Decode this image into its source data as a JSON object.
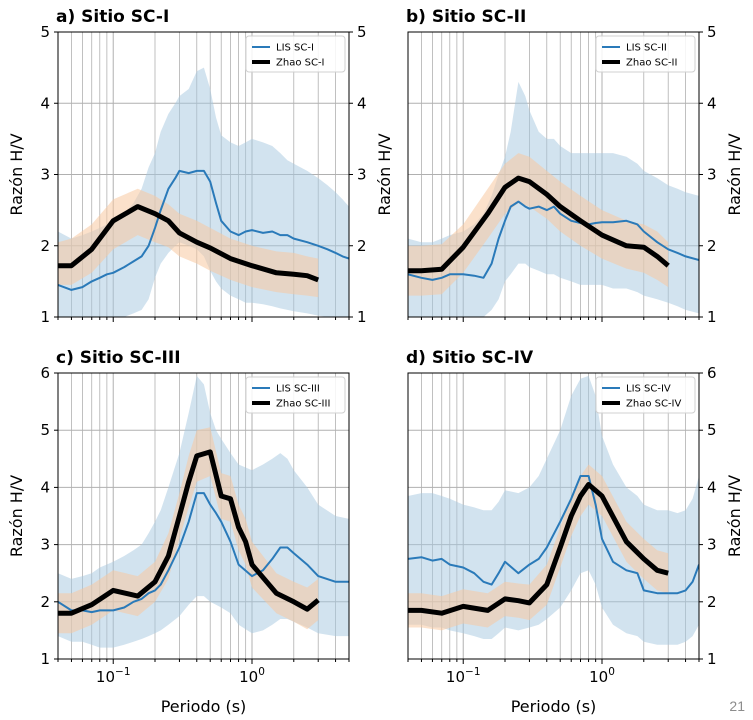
{
  "colors": {
    "lis_line": "#2a7ab9",
    "lis_band": "#a6c8e0",
    "zhao_line": "#000000",
    "zhao_band": "#f7c9a0",
    "grid": "#b0b0b0"
  },
  "slide_number": "21",
  "chart_data": [
    {
      "type": "line",
      "title": "a) Sitio SC-I",
      "xlabel": "",
      "ylabel": "Razón H/V",
      "ylabel_side": "both",
      "x_scale": "log",
      "xlim": [
        0.04,
        5
      ],
      "ylim": [
        1,
        5
      ],
      "yticks": [
        "1",
        "2",
        "3",
        "4",
        "5"
      ],
      "legend": "top-right",
      "series": [
        {
          "name": "LIS SC-I",
          "x": [
            0.04,
            0.05,
            0.06,
            0.07,
            0.08,
            0.09,
            0.1,
            0.12,
            0.14,
            0.16,
            0.18,
            0.2,
            0.22,
            0.25,
            0.28,
            0.3,
            0.35,
            0.4,
            0.45,
            0.5,
            0.55,
            0.6,
            0.7,
            0.8,
            0.9,
            1.0,
            1.2,
            1.4,
            1.6,
            1.8,
            2.0,
            2.5,
            3.0,
            3.5,
            4.0,
            4.5,
            5.0
          ],
          "y": [
            1.45,
            1.38,
            1.42,
            1.5,
            1.55,
            1.6,
            1.62,
            1.7,
            1.78,
            1.85,
            2.0,
            2.25,
            2.5,
            2.8,
            2.95,
            3.05,
            3.02,
            3.05,
            3.05,
            2.9,
            2.6,
            2.35,
            2.2,
            2.15,
            2.2,
            2.22,
            2.18,
            2.2,
            2.15,
            2.15,
            2.1,
            2.05,
            2.0,
            1.95,
            1.9,
            1.85,
            1.82
          ],
          "band_upper": [
            2.2,
            2.1,
            2.15,
            2.2,
            2.25,
            2.3,
            2.4,
            2.45,
            2.6,
            2.8,
            3.1,
            3.3,
            3.6,
            3.85,
            4.0,
            4.1,
            4.2,
            4.45,
            4.5,
            4.2,
            3.8,
            3.55,
            3.45,
            3.4,
            3.45,
            3.5,
            3.45,
            3.4,
            3.3,
            3.2,
            3.15,
            3.05,
            2.95,
            2.85,
            2.75,
            2.65,
            2.55
          ],
          "band_lower": [
            1.0,
            1.0,
            1.0,
            1.0,
            1.0,
            1.0,
            1.0,
            1.0,
            1.05,
            1.1,
            1.25,
            1.55,
            1.75,
            1.9,
            2.0,
            2.05,
            2.0,
            1.95,
            1.85,
            1.65,
            1.5,
            1.4,
            1.3,
            1.25,
            1.2,
            1.2,
            1.18,
            1.15,
            1.12,
            1.1,
            1.08,
            1.05,
            1.02,
            1.0,
            1.0,
            1.0,
            1.0
          ]
        },
        {
          "name": "Zhao SC-I",
          "x": [
            0.04,
            0.05,
            0.07,
            0.1,
            0.15,
            0.2,
            0.25,
            0.3,
            0.4,
            0.5,
            0.7,
            1.0,
            1.5,
            2.0,
            2.5,
            3.0
          ],
          "y": [
            1.72,
            1.72,
            1.95,
            2.35,
            2.55,
            2.45,
            2.35,
            2.18,
            2.05,
            1.97,
            1.82,
            1.72,
            1.62,
            1.6,
            1.58,
            1.52
          ],
          "band_upper": [
            2.05,
            2.1,
            2.3,
            2.65,
            2.8,
            2.7,
            2.58,
            2.45,
            2.35,
            2.25,
            2.1,
            2.0,
            1.92,
            1.9,
            1.85,
            1.82
          ],
          "band_lower": [
            1.45,
            1.45,
            1.62,
            1.95,
            2.15,
            2.05,
            1.98,
            1.85,
            1.75,
            1.65,
            1.52,
            1.42,
            1.35,
            1.32,
            1.3,
            1.28
          ]
        }
      ]
    },
    {
      "type": "line",
      "title": "b) Sitio SC-II",
      "xlabel": "",
      "ylabel": "Razón H/V",
      "ylabel_side": "right",
      "x_scale": "log",
      "xlim": [
        0.04,
        5
      ],
      "ylim": [
        1,
        5
      ],
      "yticks": [
        "1",
        "2",
        "3",
        "4",
        "5"
      ],
      "legend": "top-right",
      "series": [
        {
          "name": "LIS SC-II",
          "x": [
            0.04,
            0.05,
            0.06,
            0.07,
            0.08,
            0.1,
            0.12,
            0.14,
            0.16,
            0.18,
            0.2,
            0.22,
            0.25,
            0.28,
            0.3,
            0.35,
            0.4,
            0.45,
            0.5,
            0.6,
            0.7,
            0.8,
            0.9,
            1.0,
            1.2,
            1.5,
            1.8,
            2.0,
            2.5,
            3.0,
            3.5,
            4.0,
            5.0
          ],
          "y": [
            1.6,
            1.55,
            1.52,
            1.55,
            1.6,
            1.6,
            1.58,
            1.55,
            1.75,
            2.1,
            2.35,
            2.55,
            2.62,
            2.55,
            2.52,
            2.55,
            2.5,
            2.55,
            2.45,
            2.35,
            2.32,
            2.3,
            2.32,
            2.33,
            2.33,
            2.35,
            2.3,
            2.2,
            2.05,
            1.95,
            1.9,
            1.85,
            1.8
          ],
          "band_upper": [
            2.1,
            2.05,
            2.05,
            2.1,
            2.15,
            2.2,
            2.3,
            2.45,
            2.7,
            3.0,
            3.25,
            3.6,
            4.3,
            4.1,
            3.9,
            3.6,
            3.5,
            3.5,
            3.4,
            3.3,
            3.3,
            3.3,
            3.3,
            3.3,
            3.3,
            3.25,
            3.15,
            3.05,
            2.95,
            2.85,
            2.8,
            2.75,
            2.7
          ],
          "band_lower": [
            1.0,
            1.0,
            1.0,
            1.0,
            1.0,
            1.0,
            1.0,
            1.0,
            1.1,
            1.25,
            1.5,
            1.6,
            1.75,
            1.75,
            1.7,
            1.65,
            1.6,
            1.6,
            1.55,
            1.5,
            1.45,
            1.45,
            1.45,
            1.45,
            1.4,
            1.4,
            1.35,
            1.3,
            1.25,
            1.2,
            1.15,
            1.1,
            1.05
          ]
        },
        {
          "name": "Zhao SC-II",
          "x": [
            0.04,
            0.05,
            0.07,
            0.1,
            0.15,
            0.2,
            0.25,
            0.3,
            0.4,
            0.5,
            0.7,
            1.0,
            1.5,
            2.0,
            2.5,
            3.0
          ],
          "y": [
            1.65,
            1.65,
            1.67,
            1.98,
            2.45,
            2.82,
            2.95,
            2.9,
            2.72,
            2.55,
            2.35,
            2.15,
            2.0,
            1.98,
            1.85,
            1.72
          ],
          "band_upper": [
            2.0,
            2.0,
            2.02,
            2.3,
            2.8,
            3.15,
            3.3,
            3.25,
            3.05,
            2.9,
            2.7,
            2.5,
            2.35,
            2.3,
            2.2,
            2.05
          ],
          "band_lower": [
            1.3,
            1.3,
            1.32,
            1.62,
            2.1,
            2.45,
            2.6,
            2.55,
            2.38,
            2.2,
            2.0,
            1.82,
            1.68,
            1.62,
            1.52,
            1.42
          ]
        }
      ]
    },
    {
      "type": "line",
      "title": "c) Sitio SC-III",
      "xlabel": "Periodo (s)",
      "ylabel": "Razón H/V",
      "ylabel_side": "left",
      "x_scale": "log",
      "xlim": [
        0.04,
        5
      ],
      "ylim": [
        1,
        6
      ],
      "yticks": [
        "1",
        "2",
        "3",
        "4",
        "5",
        "6"
      ],
      "legend": "top-right",
      "series": [
        {
          "name": "LIS SC-III",
          "x": [
            0.04,
            0.05,
            0.06,
            0.07,
            0.08,
            0.1,
            0.12,
            0.14,
            0.16,
            0.18,
            0.2,
            0.22,
            0.25,
            0.3,
            0.35,
            0.4,
            0.45,
            0.5,
            0.55,
            0.6,
            0.7,
            0.8,
            1.0,
            1.2,
            1.4,
            1.6,
            1.8,
            2.0,
            2.5,
            3.0,
            4.0,
            5.0
          ],
          "y": [
            2.0,
            1.85,
            1.85,
            1.82,
            1.85,
            1.85,
            1.9,
            2.0,
            2.05,
            2.15,
            2.2,
            2.3,
            2.55,
            2.95,
            3.4,
            3.9,
            3.9,
            3.7,
            3.55,
            3.4,
            3.05,
            2.65,
            2.45,
            2.55,
            2.75,
            2.95,
            2.95,
            2.85,
            2.65,
            2.45,
            2.35,
            2.35
          ],
          "band_upper": [
            2.5,
            2.4,
            2.45,
            2.5,
            2.6,
            2.7,
            2.8,
            2.9,
            3.0,
            3.2,
            3.4,
            3.6,
            4.0,
            4.6,
            5.3,
            5.95,
            5.8,
            5.3,
            5.0,
            4.85,
            4.6,
            4.4,
            4.3,
            4.4,
            4.5,
            4.6,
            4.5,
            4.3,
            4.0,
            3.7,
            3.5,
            3.45
          ],
          "band_lower": [
            1.4,
            1.3,
            1.3,
            1.25,
            1.2,
            1.2,
            1.25,
            1.3,
            1.35,
            1.4,
            1.45,
            1.5,
            1.6,
            1.75,
            1.95,
            2.1,
            2.1,
            2.0,
            1.95,
            1.9,
            1.8,
            1.6,
            1.45,
            1.5,
            1.6,
            1.7,
            1.7,
            1.65,
            1.55,
            1.45,
            1.4,
            1.4
          ]
        },
        {
          "name": "Zhao SC-III",
          "x": [
            0.04,
            0.05,
            0.07,
            0.1,
            0.15,
            0.2,
            0.25,
            0.3,
            0.35,
            0.4,
            0.5,
            0.6,
            0.7,
            0.8,
            0.9,
            1.0,
            1.5,
            2.0,
            2.5,
            3.0
          ],
          "y": [
            1.8,
            1.8,
            1.95,
            2.2,
            2.1,
            2.35,
            2.8,
            3.5,
            4.1,
            4.55,
            4.62,
            3.85,
            3.8,
            3.3,
            3.05,
            2.65,
            2.15,
            2.0,
            1.87,
            2.03
          ],
          "band_upper": [
            2.15,
            2.15,
            2.3,
            2.55,
            2.45,
            2.7,
            3.2,
            3.9,
            4.55,
            5.0,
            5.05,
            4.25,
            4.2,
            3.7,
            3.45,
            3.05,
            2.5,
            2.35,
            2.25,
            2.4
          ],
          "band_lower": [
            1.45,
            1.45,
            1.6,
            1.85,
            1.75,
            2.0,
            2.4,
            3.1,
            3.65,
            4.1,
            4.2,
            3.45,
            3.4,
            2.9,
            2.65,
            2.25,
            1.8,
            1.65,
            1.52,
            1.68
          ]
        }
      ]
    },
    {
      "type": "line",
      "title": "d) Sitio SC-IV",
      "xlabel": "Periodo (s)",
      "ylabel": "Razón H/V",
      "ylabel_side": "right",
      "x_scale": "log",
      "xlim": [
        0.04,
        5
      ],
      "ylim": [
        1,
        6
      ],
      "yticks": [
        "1",
        "2",
        "3",
        "4",
        "5",
        "6"
      ],
      "legend": "top-right",
      "series": [
        {
          "name": "LIS SC-IV",
          "x": [
            0.04,
            0.05,
            0.06,
            0.07,
            0.08,
            0.1,
            0.12,
            0.14,
            0.16,
            0.18,
            0.2,
            0.25,
            0.3,
            0.35,
            0.4,
            0.5,
            0.6,
            0.7,
            0.8,
            0.9,
            1.0,
            1.2,
            1.5,
            1.8,
            2.0,
            2.5,
            3.0,
            3.5,
            4.0,
            4.5,
            5.0
          ],
          "y": [
            2.75,
            2.78,
            2.72,
            2.75,
            2.65,
            2.6,
            2.5,
            2.35,
            2.3,
            2.5,
            2.7,
            2.5,
            2.65,
            2.75,
            2.95,
            3.4,
            3.8,
            4.2,
            4.2,
            3.7,
            3.1,
            2.7,
            2.55,
            2.5,
            2.2,
            2.15,
            2.15,
            2.15,
            2.2,
            2.35,
            2.65
          ],
          "band_upper": [
            3.85,
            3.9,
            3.9,
            3.85,
            3.8,
            3.7,
            3.65,
            3.6,
            3.6,
            3.75,
            3.95,
            3.9,
            4.0,
            4.2,
            4.5,
            5.0,
            5.6,
            5.9,
            5.95,
            5.6,
            4.9,
            4.4,
            4.0,
            3.85,
            3.7,
            3.6,
            3.6,
            3.55,
            3.6,
            3.8,
            4.2
          ],
          "band_lower": [
            1.6,
            1.6,
            1.55,
            1.55,
            1.5,
            1.45,
            1.4,
            1.35,
            1.35,
            1.45,
            1.55,
            1.5,
            1.55,
            1.6,
            1.7,
            1.9,
            2.2,
            2.5,
            2.55,
            2.3,
            1.9,
            1.6,
            1.45,
            1.4,
            1.3,
            1.25,
            1.25,
            1.25,
            1.3,
            1.4,
            1.6
          ]
        },
        {
          "name": "Zhao SC-IV",
          "x": [
            0.04,
            0.05,
            0.07,
            0.1,
            0.15,
            0.2,
            0.25,
            0.3,
            0.4,
            0.5,
            0.6,
            0.7,
            0.8,
            1.0,
            1.5,
            2.0,
            2.5,
            3.0
          ],
          "y": [
            1.85,
            1.85,
            1.8,
            1.92,
            1.85,
            2.05,
            2.02,
            1.98,
            2.3,
            2.95,
            3.5,
            3.85,
            4.05,
            3.85,
            3.05,
            2.75,
            2.55,
            2.5
          ],
          "band_upper": [
            2.15,
            2.15,
            2.1,
            2.22,
            2.15,
            2.35,
            2.32,
            2.3,
            2.65,
            3.3,
            3.85,
            4.2,
            4.4,
            4.2,
            3.4,
            3.1,
            2.9,
            2.85
          ],
          "band_lower": [
            1.55,
            1.55,
            1.5,
            1.62,
            1.55,
            1.75,
            1.72,
            1.68,
            1.95,
            2.6,
            3.15,
            3.5,
            3.7,
            3.5,
            2.7,
            2.4,
            2.2,
            2.15
          ]
        }
      ]
    }
  ]
}
